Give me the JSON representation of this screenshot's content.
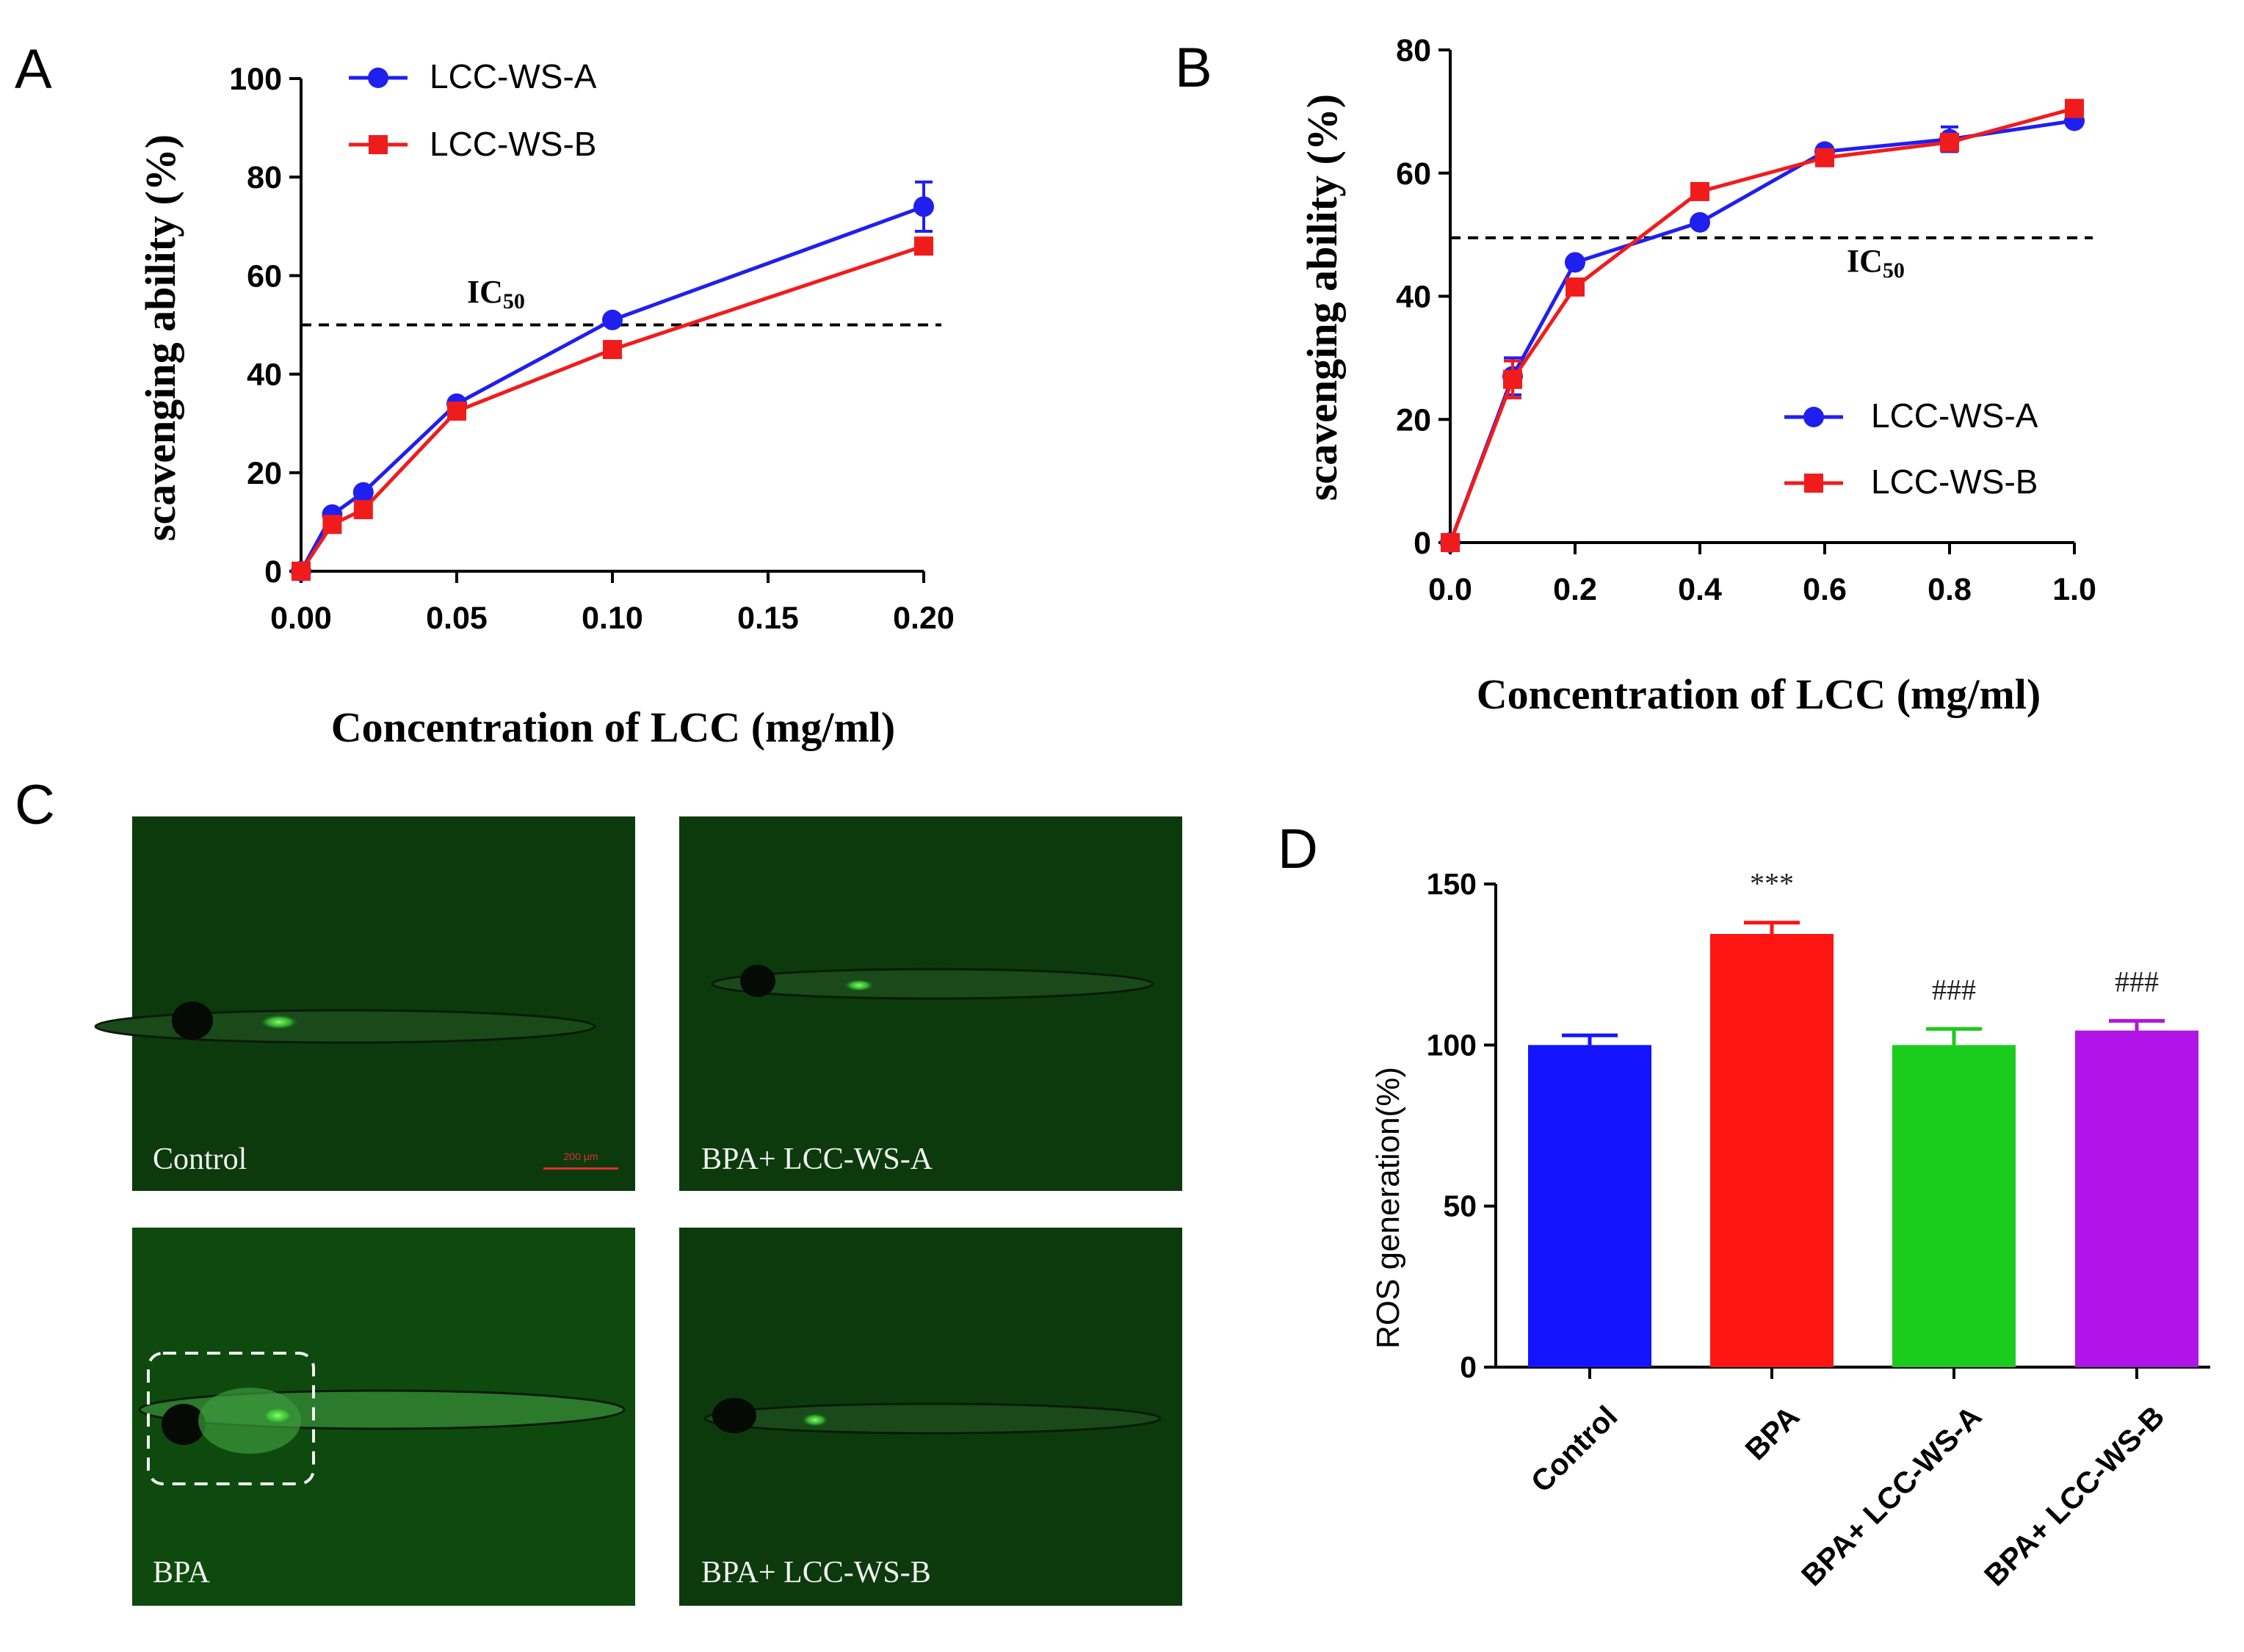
{
  "panels": {
    "A": {
      "letter": "A"
    },
    "B": {
      "letter": "B"
    },
    "C": {
      "letter": "C"
    },
    "D": {
      "letter": "D"
    }
  },
  "colors": {
    "series_a": "#1f1ff0",
    "series_b": "#f01c1c",
    "bar_control": "#1414ff",
    "bar_bpa": "#ff1414",
    "bar_ws_a": "#1ccc1c",
    "bar_ws_b": "#b014e6",
    "fluorescence_bg": "#0c3a0c"
  },
  "chart_data": [
    {
      "id": "A",
      "type": "line",
      "ylabel": "scavenging ability (%)",
      "xlabel": "Concentration of LCC (mg/ml)",
      "xlim": [
        0,
        0.2
      ],
      "ylim": [
        0,
        100
      ],
      "xticks": [
        "0.00",
        "0.05",
        "0.10",
        "0.15",
        "0.20"
      ],
      "xtick_values": [
        0,
        0.05,
        0.1,
        0.15,
        0.2
      ],
      "yticks": [
        "0",
        "20",
        "40",
        "60",
        "80",
        "100"
      ],
      "ytick_values": [
        0,
        20,
        40,
        60,
        80,
        100
      ],
      "legend_position": "top-left",
      "reference_line": {
        "y": 50,
        "label": "IC",
        "label_sub": "50"
      },
      "series": [
        {
          "name": "LCC-WS-A",
          "marker": "circle",
          "x": [
            0,
            0.01,
            0.02,
            0.05,
            0.1,
            0.2
          ],
          "y": [
            0,
            11.5,
            16,
            34,
            51,
            74
          ],
          "err": [
            0,
            0,
            0,
            0,
            0,
            5
          ]
        },
        {
          "name": "LCC-WS-B",
          "marker": "square",
          "x": [
            0,
            0.01,
            0.02,
            0.05,
            0.1,
            0.2
          ],
          "y": [
            0,
            9.5,
            12.5,
            32.5,
            45,
            66
          ],
          "err": [
            0,
            0,
            0,
            0,
            0,
            0
          ]
        }
      ]
    },
    {
      "id": "B",
      "type": "line",
      "ylabel": "scavenging ability (%)",
      "xlabel": "Concentration of LCC (mg/ml)",
      "xlim": [
        0,
        1.0
      ],
      "ylim": [
        0,
        80
      ],
      "xticks": [
        "0.0",
        "0.2",
        "0.4",
        "0.6",
        "0.8",
        "1.0"
      ],
      "xtick_values": [
        0,
        0.2,
        0.4,
        0.6,
        0.8,
        1.0
      ],
      "yticks": [
        "0",
        "20",
        "40",
        "60",
        "80"
      ],
      "ytick_values": [
        0,
        20,
        40,
        60,
        80
      ],
      "legend_position": "bottom-right",
      "reference_line": {
        "y": 49.5,
        "label": "IC",
        "label_sub": "50"
      },
      "series": [
        {
          "name": "LCC-WS-A",
          "marker": "circle",
          "x": [
            0,
            0.1,
            0.2,
            0.4,
            0.6,
            0.8,
            1.0
          ],
          "y": [
            0,
            27,
            45.5,
            52,
            63.5,
            65.5,
            68.5
          ],
          "err": [
            0,
            3,
            0,
            0,
            0,
            2,
            0
          ]
        },
        {
          "name": "LCC-WS-B",
          "marker": "square",
          "x": [
            0,
            0.1,
            0.2,
            0.4,
            0.6,
            0.8,
            1.0
          ],
          "y": [
            0,
            26.5,
            41.5,
            57,
            62.5,
            65,
            70.5
          ],
          "err": [
            0,
            3,
            0,
            0,
            0,
            0,
            0
          ]
        }
      ]
    },
    {
      "id": "D",
      "type": "bar",
      "ylabel": "ROS generation(%)",
      "xlabel": "",
      "ylim": [
        0,
        150
      ],
      "yticks": [
        "0",
        "50",
        "100",
        "150"
      ],
      "ytick_values": [
        0,
        50,
        100,
        150
      ],
      "categories": [
        "Control",
        "BPA",
        "BPA+ LCC-WS-A",
        "BPA+ LCC-WS-B"
      ],
      "values": [
        100,
        134.5,
        100,
        104.5
      ],
      "err": [
        3,
        3.5,
        5,
        3
      ],
      "annotations": [
        "",
        "***",
        "###",
        "###"
      ]
    }
  ],
  "images": {
    "labels": [
      "Control",
      "BPA+ LCC-WS-A",
      "BPA",
      "BPA+ LCC-WS-B"
    ],
    "scale_bar": "200 μm"
  }
}
